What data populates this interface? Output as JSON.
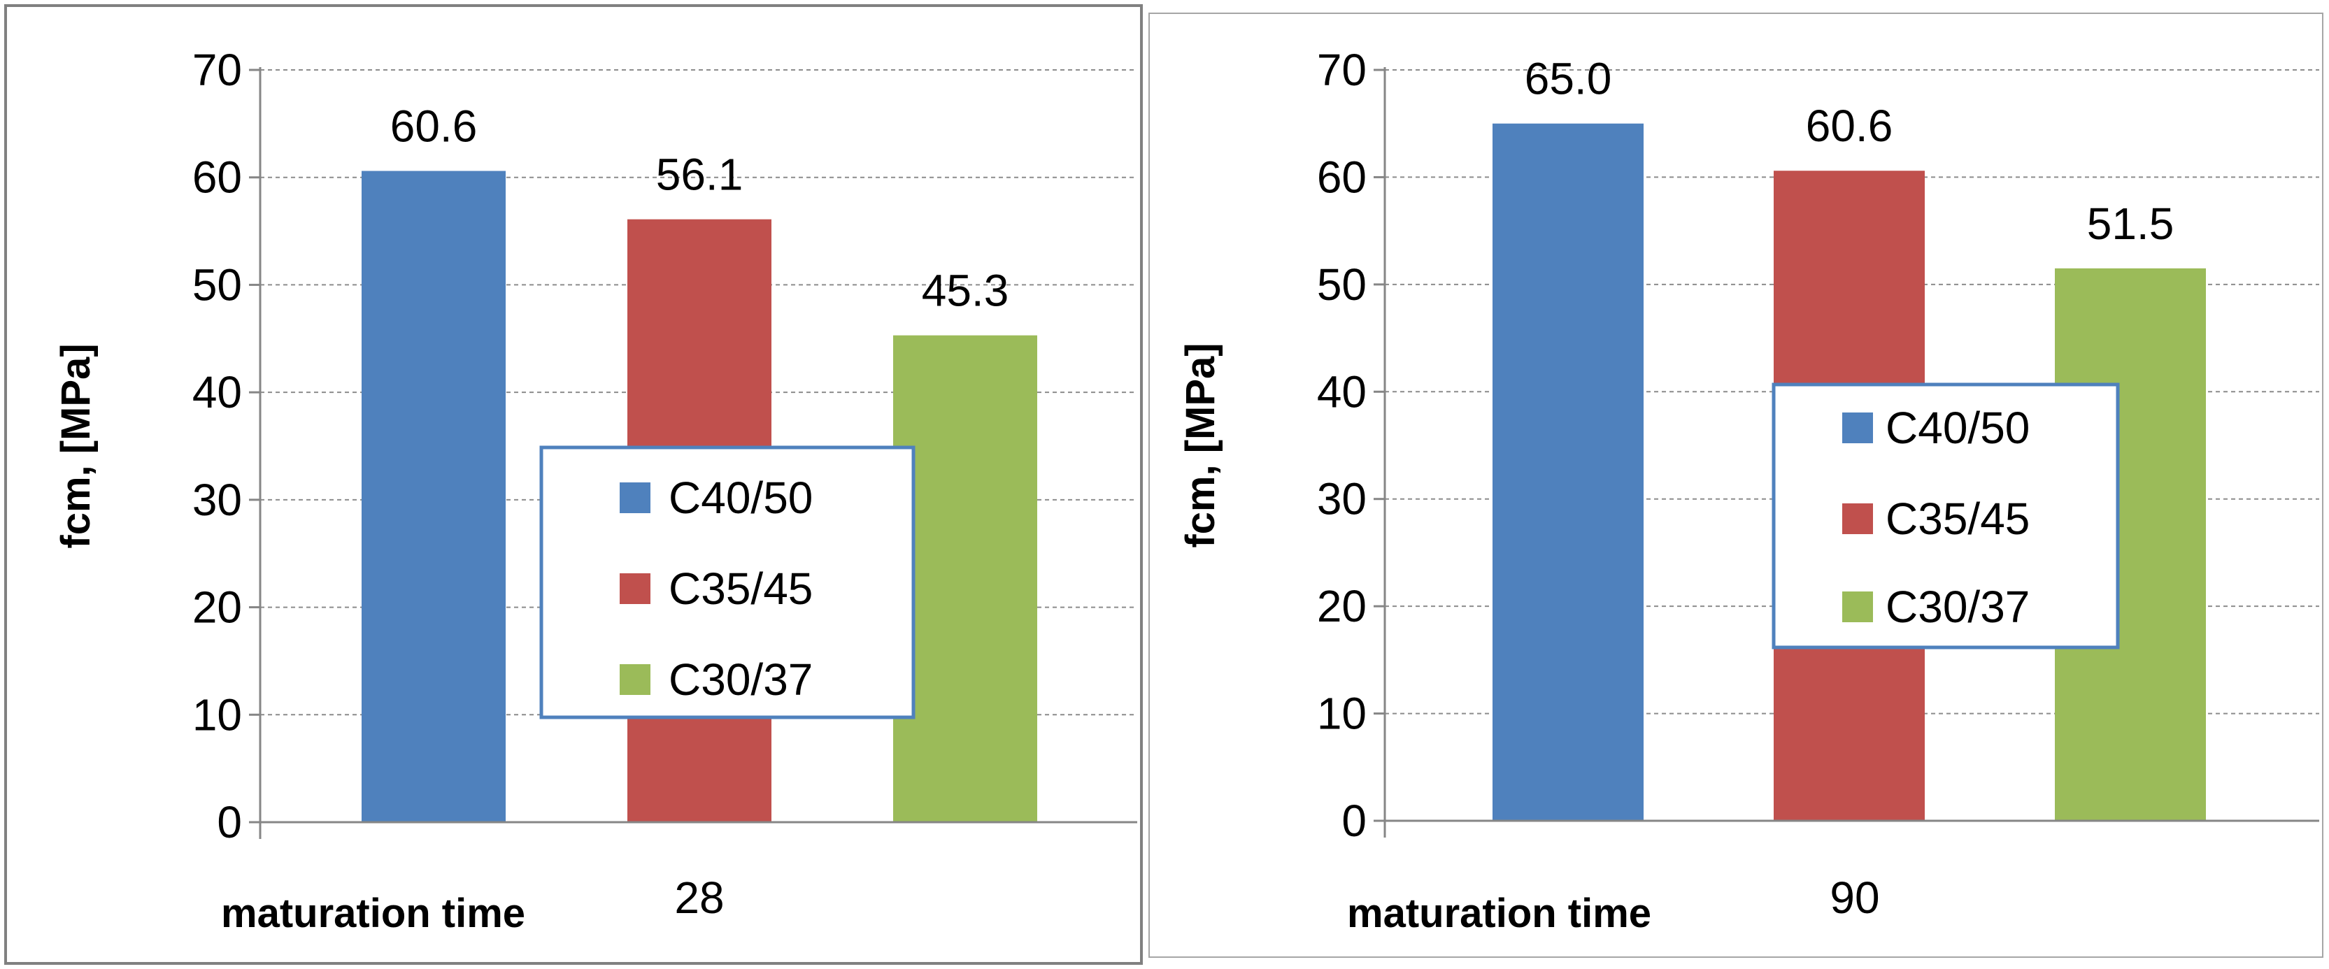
{
  "chart_data": [
    {
      "type": "bar",
      "categories": [
        "28"
      ],
      "series": [
        {
          "name": "C40/50",
          "values": [
            60.6
          ],
          "color": "#4f81bd"
        },
        {
          "name": "C35/45",
          "values": [
            56.1
          ],
          "color": "#c0504d"
        },
        {
          "name": "C30/37",
          "values": [
            45.3
          ],
          "color": "#9bbb59"
        }
      ],
      "data_labels": [
        "60.6",
        "56.1",
        "45.3"
      ],
      "xlabel": "maturation time",
      "ylabel": "fcm, [MPa]",
      "ylim": [
        0,
        70
      ],
      "yticks": [
        "0",
        "10",
        "20",
        "30",
        "40",
        "50",
        "60",
        "70"
      ],
      "grid": true,
      "legend": "center"
    },
    {
      "type": "bar",
      "categories": [
        "90"
      ],
      "series": [
        {
          "name": "C40/50",
          "values": [
            65.0
          ],
          "color": "#4f81bd"
        },
        {
          "name": "C35/45",
          "values": [
            60.6
          ],
          "color": "#c0504d"
        },
        {
          "name": "C30/37",
          "values": [
            51.5
          ],
          "color": "#9bbb59"
        }
      ],
      "data_labels": [
        "65.0",
        "60.6",
        "51.5"
      ],
      "xlabel": "maturation time",
      "ylabel": "fcm, [MPa]",
      "ylim": [
        0,
        70
      ],
      "yticks": [
        "0",
        "10",
        "20",
        "30",
        "40",
        "50",
        "60",
        "70"
      ],
      "grid": true,
      "legend": "center"
    }
  ]
}
